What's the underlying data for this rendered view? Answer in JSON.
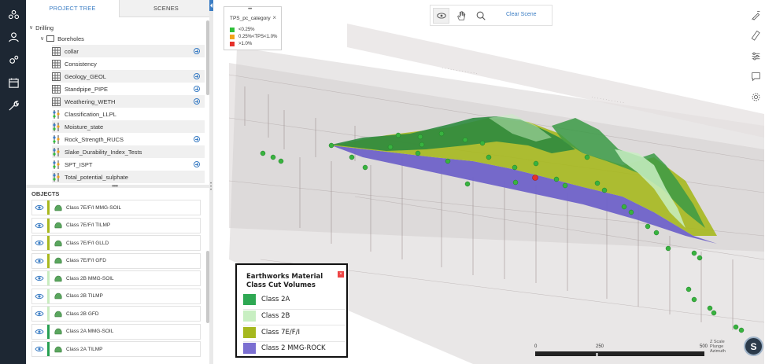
{
  "rail": {
    "items": [
      "layers-icon",
      "people-icon",
      "settings-gear-icon",
      "calendar-icon",
      "wrench-icon"
    ]
  },
  "tree": {
    "tabs": [
      "PROJECT TREE",
      "SCENES"
    ],
    "root": "Drilling",
    "folder": "Boreholes",
    "items": [
      {
        "label": "collar",
        "icon": "table-icon",
        "addable": true
      },
      {
        "label": "Consistency",
        "icon": "table-icon",
        "addable": false
      },
      {
        "label": "Geology_GEOL",
        "icon": "table-icon",
        "addable": true
      },
      {
        "label": "Standpipe_PIPE",
        "icon": "table-icon",
        "addable": true
      },
      {
        "label": "Weathering_WETH",
        "icon": "table-icon",
        "addable": true
      },
      {
        "label": "Classification_LLPL",
        "icon": "points-icon",
        "addable": false
      },
      {
        "label": "Moisture_state",
        "icon": "points-icon",
        "addable": false
      },
      {
        "label": "Rock_Strength_RUCS",
        "icon": "points-icon",
        "addable": true
      },
      {
        "label": "Slake_Durability_Index_Tests",
        "icon": "points-icon",
        "addable": false
      },
      {
        "label": "SPT_ISPT",
        "icon": "points-icon",
        "addable": true
      },
      {
        "label": "Total_potential_sulphate",
        "icon": "points-icon",
        "addable": false
      }
    ]
  },
  "objects": {
    "title": "OBJECTS",
    "items": [
      {
        "label": "Class 7E/F/I MMG-SOIL",
        "color": "#a9b81f"
      },
      {
        "label": "Class 7E/F/I TILMP",
        "color": "#a9b81f"
      },
      {
        "label": "Class 7E/F/I GLLD",
        "color": "#a9b81f"
      },
      {
        "label": "Class 7E/F/I GFD",
        "color": "#a9b81f"
      },
      {
        "label": "Class 2B MMG-SOIL",
        "color": "#c8ecc0"
      },
      {
        "label": "Class 2B TILMP",
        "color": "#c8ecc0"
      },
      {
        "label": "Class 2B GFD",
        "color": "#c8ecc0"
      },
      {
        "label": "Class 2A MMG-SOIL",
        "color": "#27a052"
      },
      {
        "label": "Class 2A TILMP",
        "color": "#27a052"
      }
    ]
  },
  "tps_legend": {
    "title": "TPS_pc_category",
    "items": [
      {
        "label": "<0.25%",
        "color": "#2fbf3a"
      },
      {
        "label": "0.25%<TPS<1.0%",
        "color": "#f2a31b"
      },
      {
        "label": ">1.0%",
        "color": "#e5312b"
      }
    ]
  },
  "toolbar": {
    "clear_label": "Clear Scene",
    "tools": [
      "orbit-icon",
      "pan-hand-icon",
      "zoom-search-icon"
    ]
  },
  "right_tools": [
    "measure-pen-icon",
    "ruler-icon",
    "sliders-icon",
    "comment-icon",
    "settings-icon"
  ],
  "earthworks_legend": {
    "title_line1": "Earthworks Material",
    "title_line2": "Class Cut Volumes",
    "items": [
      {
        "label": "Class 2A",
        "color": "#2ea853"
      },
      {
        "label": "Class 2B",
        "color": "#c8efc2"
      },
      {
        "label": "Class 7E/F/I",
        "color": "#a6b81e"
      },
      {
        "label": "Class 2 MMG-ROCK",
        "color": "#7b6fd1"
      }
    ]
  },
  "scale": {
    "labels": [
      "0",
      "250",
      "500"
    ]
  },
  "readout": {
    "line1": "Z  Scale",
    "line2": "Plunge",
    "line3": "Azimuth"
  },
  "user": {
    "initial": "S"
  }
}
